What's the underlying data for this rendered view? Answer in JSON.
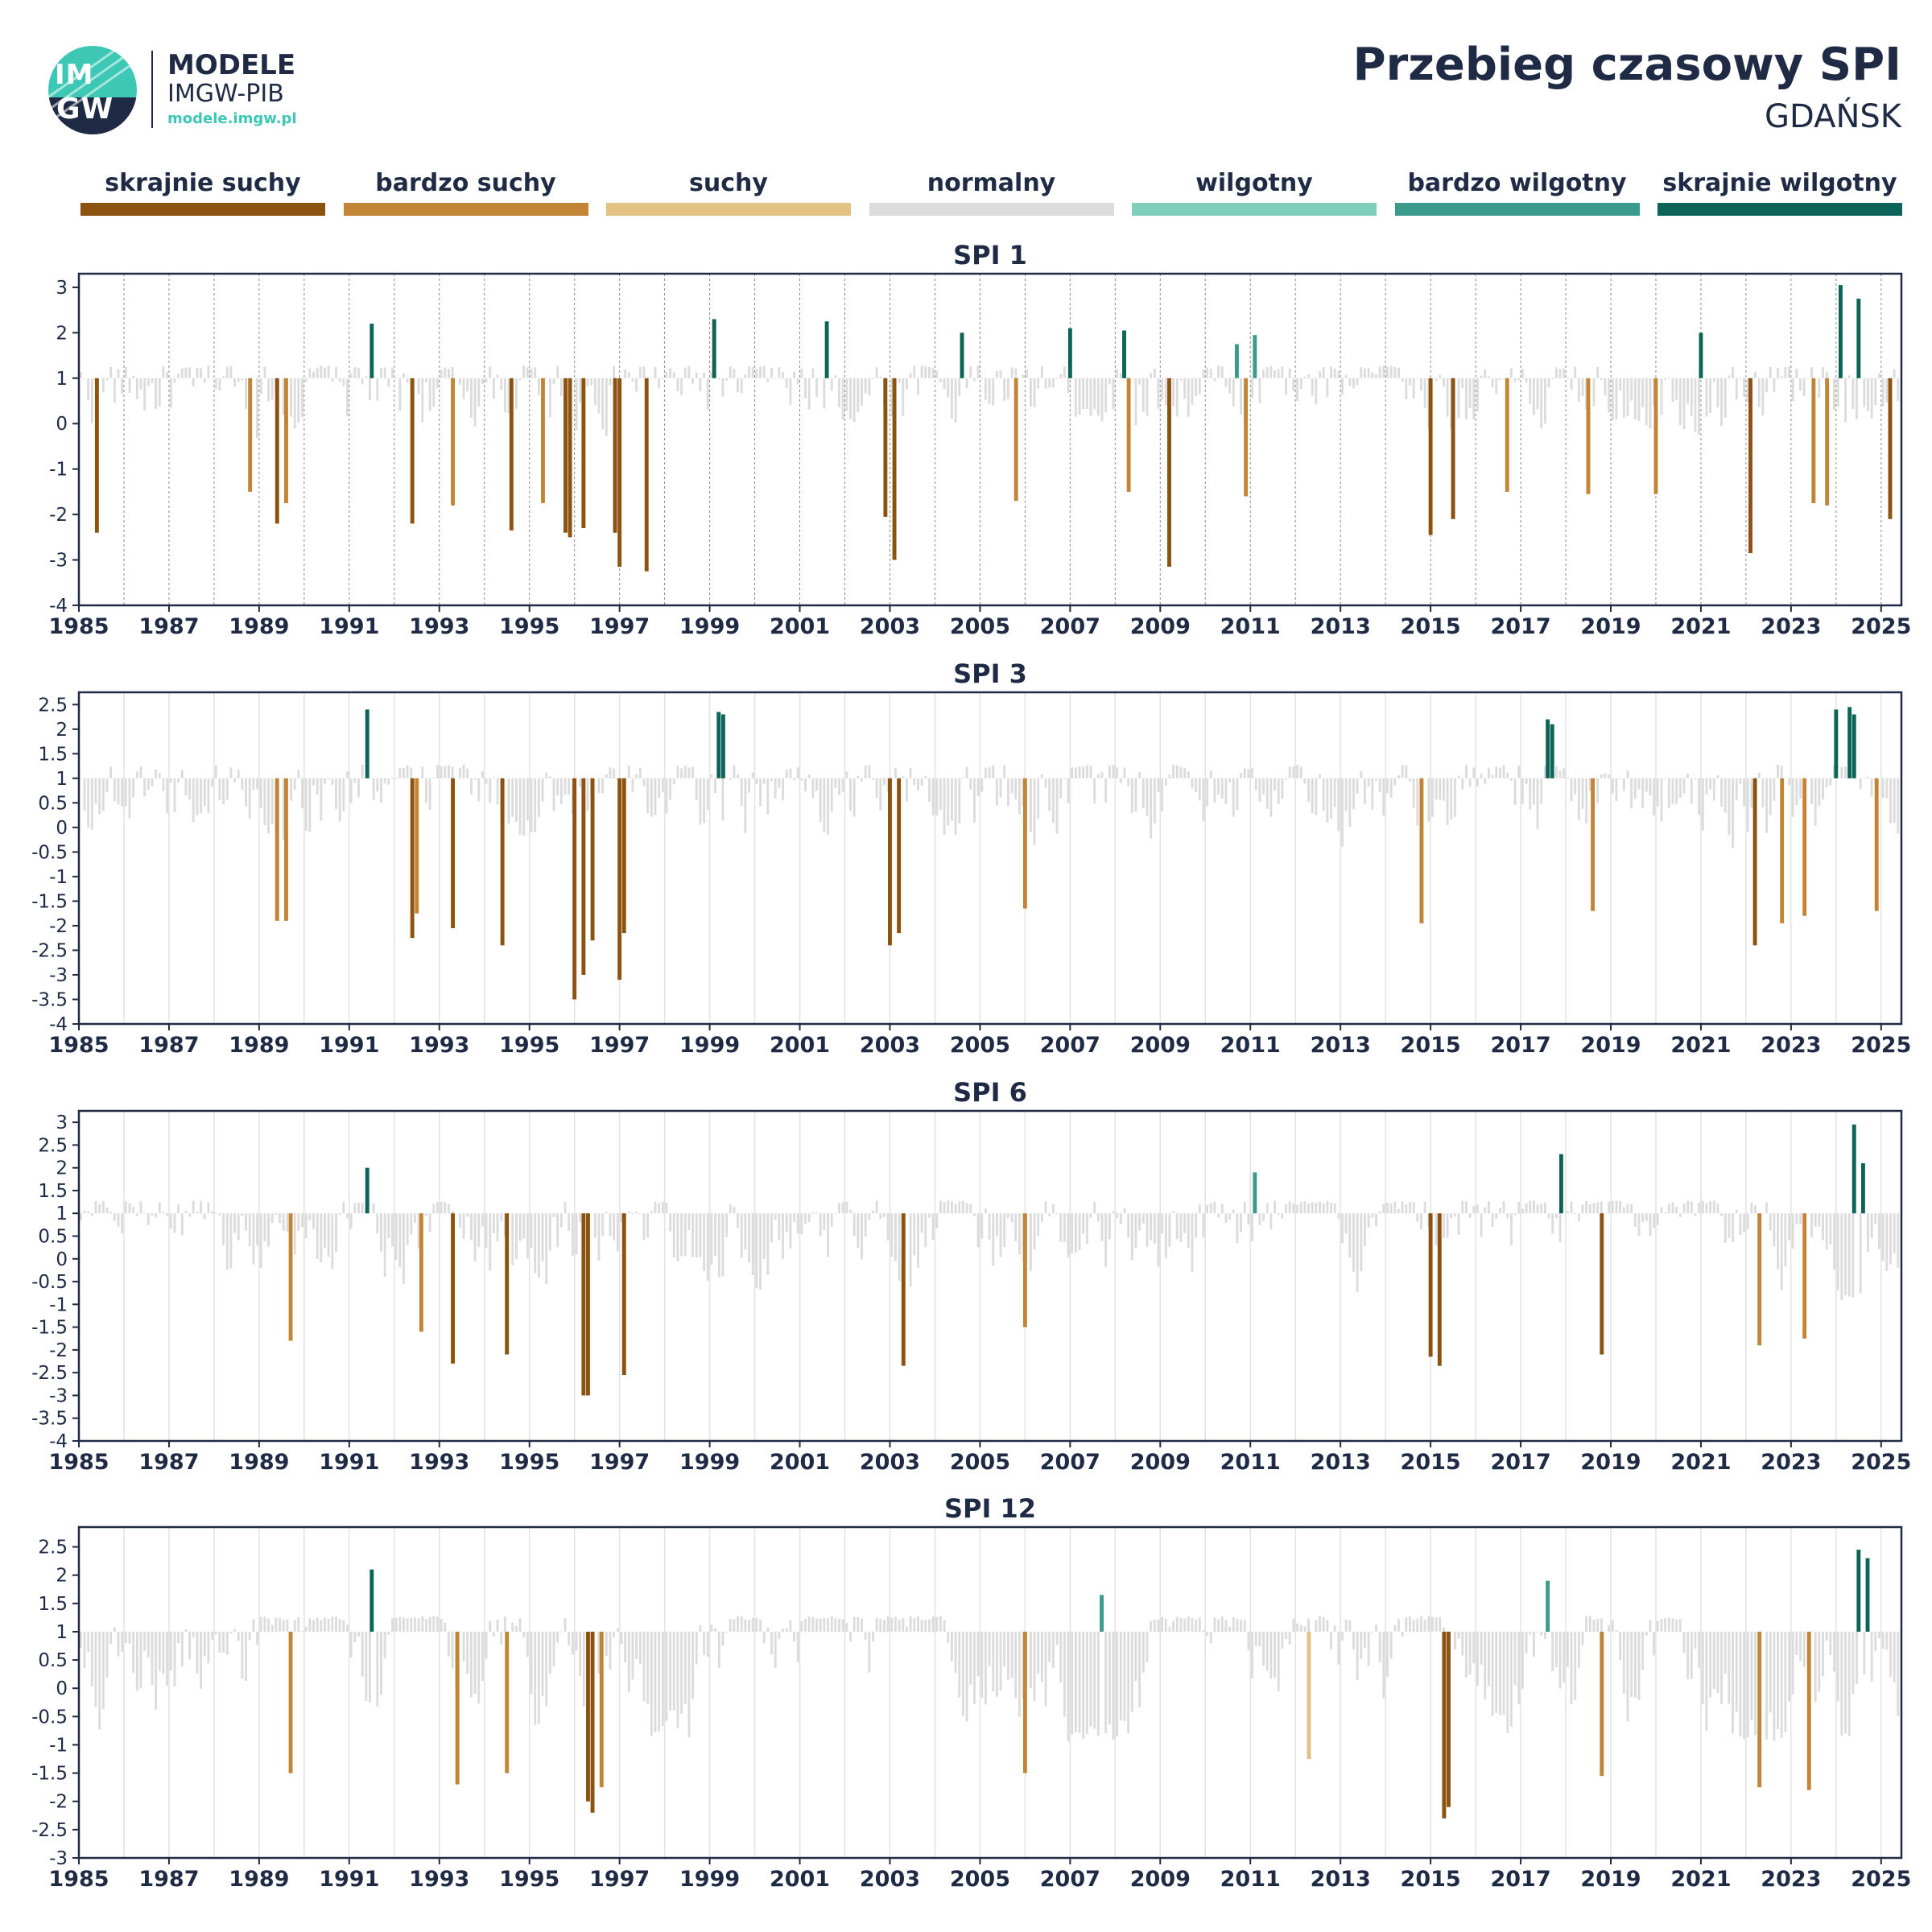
{
  "header": {
    "logo_text_line1": "MODELE",
    "logo_text_line2": "IMGW-PIB",
    "logo_url": "modele.imgw.pl",
    "logo_mark_top": "IM",
    "logo_mark_bottom": "GW",
    "title": "Przebieg czasowy SPI",
    "subtitle": "GDAŃSK"
  },
  "legend": [
    {
      "label": "skrajnie suchy",
      "color": "#8b5210"
    },
    {
      "label": "bardzo suchy",
      "color": "#c28535"
    },
    {
      "label": "suchy",
      "color": "#e2c384"
    },
    {
      "label": "normalny",
      "color": "#dcdcdc"
    },
    {
      "label": "wilgotny",
      "color": "#7fcdbb"
    },
    {
      "label": "bardzo wilgotny",
      "color": "#3a9a8c"
    },
    {
      "label": "skrajnie wilgotny",
      "color": "#0b6457"
    }
  ],
  "chart_data": [
    {
      "type": "bar",
      "title": "SPI 1",
      "xlim": [
        1985.0,
        2025.45
      ],
      "ylim": [
        -4,
        3.3
      ],
      "yticks": [
        "3",
        "2",
        "1",
        "0",
        "-1",
        "-2",
        "-3",
        "-4"
      ],
      "ytick_values": [
        3,
        2,
        1,
        0,
        -1,
        -2,
        -3,
        -4
      ],
      "xticks": [
        "1985",
        "1987",
        "1989",
        "1991",
        "1993",
        "1995",
        "1997",
        "1999",
        "2001",
        "2003",
        "2005",
        "2007",
        "2009",
        "2011",
        "2013",
        "2015",
        "2017",
        "2019",
        "2021",
        "2023",
        "2025"
      ],
      "baseline": 1,
      "grid": "dashed vertical lines at year starts",
      "extremes": [
        {
          "x": 1985.4,
          "y": -2.4
        },
        {
          "x": 1988.8,
          "y": -1.5
        },
        {
          "x": 1989.4,
          "y": -2.2
        },
        {
          "x": 1989.6,
          "y": -1.75
        },
        {
          "x": 1991.5,
          "y": 2.2
        },
        {
          "x": 1992.4,
          "y": -2.2
        },
        {
          "x": 1993.3,
          "y": -1.8
        },
        {
          "x": 1994.6,
          "y": -2.35
        },
        {
          "x": 1995.3,
          "y": -1.75
        },
        {
          "x": 1995.8,
          "y": -2.4
        },
        {
          "x": 1995.9,
          "y": -2.5
        },
        {
          "x": 1996.2,
          "y": -2.3
        },
        {
          "x": 1996.9,
          "y": -2.4
        },
        {
          "x": 1997.0,
          "y": -3.15
        },
        {
          "x": 1997.6,
          "y": -3.25
        },
        {
          "x": 1999.1,
          "y": 2.3
        },
        {
          "x": 2001.6,
          "y": 2.25
        },
        {
          "x": 2002.9,
          "y": -2.05
        },
        {
          "x": 2003.1,
          "y": -3.0
        },
        {
          "x": 2004.6,
          "y": 2.0
        },
        {
          "x": 2005.8,
          "y": -1.7
        },
        {
          "x": 2007.0,
          "y": 2.1
        },
        {
          "x": 2008.2,
          "y": 2.05
        },
        {
          "x": 2008.3,
          "y": -1.5
        },
        {
          "x": 2009.2,
          "y": -3.15
        },
        {
          "x": 2010.7,
          "y": 1.75
        },
        {
          "x": 2010.9,
          "y": -1.6
        },
        {
          "x": 2011.1,
          "y": 1.95
        },
        {
          "x": 2015.0,
          "y": -2.45
        },
        {
          "x": 2015.5,
          "y": -2.1
        },
        {
          "x": 2016.7,
          "y": -1.5
        },
        {
          "x": 2018.5,
          "y": -1.55
        },
        {
          "x": 2020.0,
          "y": -1.55
        },
        {
          "x": 2021.0,
          "y": 2.0
        },
        {
          "x": 2022.1,
          "y": -2.85
        },
        {
          "x": 2023.5,
          "y": -1.75
        },
        {
          "x": 2023.8,
          "y": -1.8
        },
        {
          "x": 2024.1,
          "y": 3.05
        },
        {
          "x": 2024.5,
          "y": 2.75
        },
        {
          "x": 2025.2,
          "y": -2.1
        }
      ]
    },
    {
      "type": "bar",
      "title": "SPI 3",
      "xlim": [
        1985.0,
        2025.45
      ],
      "ylim": [
        -4,
        2.75
      ],
      "yticks": [
        "2.5",
        "2",
        "1.5",
        "1",
        "0.5",
        "0",
        "-0.5",
        "-1",
        "-1.5",
        "-2",
        "-2.5",
        "-3",
        "-3.5",
        "-4"
      ],
      "ytick_values": [
        2.5,
        2,
        1.5,
        1,
        0.5,
        0,
        -0.5,
        -1,
        -1.5,
        -2,
        -2.5,
        -3,
        -3.5,
        -4
      ],
      "xticks": [
        "1985",
        "1987",
        "1989",
        "1991",
        "1993",
        "1995",
        "1997",
        "1999",
        "2001",
        "2003",
        "2005",
        "2007",
        "2009",
        "2011",
        "2013",
        "2015",
        "2017",
        "2019",
        "2021",
        "2023",
        "2025"
      ],
      "baseline": 1,
      "grid": "solid vertical lines at year starts",
      "extremes": [
        {
          "x": 1989.4,
          "y": -1.9
        },
        {
          "x": 1989.6,
          "y": -1.9
        },
        {
          "x": 1991.4,
          "y": 2.4
        },
        {
          "x": 1992.4,
          "y": -2.25
        },
        {
          "x": 1992.5,
          "y": -1.75
        },
        {
          "x": 1993.3,
          "y": -2.05
        },
        {
          "x": 1994.4,
          "y": -2.4
        },
        {
          "x": 1996.0,
          "y": -3.5
        },
        {
          "x": 1996.2,
          "y": -3.0
        },
        {
          "x": 1996.4,
          "y": -2.3
        },
        {
          "x": 1997.0,
          "y": -3.1
        },
        {
          "x": 1997.1,
          "y": -2.15
        },
        {
          "x": 1999.2,
          "y": 2.35
        },
        {
          "x": 1999.3,
          "y": 2.3
        },
        {
          "x": 2003.0,
          "y": -2.4
        },
        {
          "x": 2003.2,
          "y": -2.15
        },
        {
          "x": 2006.0,
          "y": -1.65
        },
        {
          "x": 2014.8,
          "y": -1.95
        },
        {
          "x": 2017.6,
          "y": 2.2
        },
        {
          "x": 2017.7,
          "y": 2.1
        },
        {
          "x": 2018.6,
          "y": -1.7
        },
        {
          "x": 2022.2,
          "y": -2.4
        },
        {
          "x": 2022.8,
          "y": -1.95
        },
        {
          "x": 2023.3,
          "y": -1.8
        },
        {
          "x": 2024.0,
          "y": 2.4
        },
        {
          "x": 2024.3,
          "y": 2.45
        },
        {
          "x": 2024.4,
          "y": 2.3
        },
        {
          "x": 2024.9,
          "y": -1.7
        }
      ]
    },
    {
      "type": "bar",
      "title": "SPI 6",
      "xlim": [
        1985.0,
        2025.45
      ],
      "ylim": [
        -4,
        3.25
      ],
      "yticks": [
        "3",
        "2.5",
        "2",
        "1.5",
        "1",
        "0.5",
        "0",
        "-0.5",
        "-1",
        "-1.5",
        "-2",
        "-2.5",
        "-3",
        "-3.5",
        "-4"
      ],
      "ytick_values": [
        3,
        2.5,
        2,
        1.5,
        1,
        0.5,
        0,
        -0.5,
        -1,
        -1.5,
        -2,
        -2.5,
        -3,
        -3.5,
        -4
      ],
      "xticks": [
        "1985",
        "1987",
        "1989",
        "1991",
        "1993",
        "1995",
        "1997",
        "1999",
        "2001",
        "2003",
        "2005",
        "2007",
        "2009",
        "2011",
        "2013",
        "2015",
        "2017",
        "2019",
        "2021",
        "2023",
        "2025"
      ],
      "baseline": 1,
      "grid": "solid vertical lines at year starts",
      "extremes": [
        {
          "x": 1989.7,
          "y": -1.8
        },
        {
          "x": 1991.4,
          "y": 2.0
        },
        {
          "x": 1992.6,
          "y": -1.6
        },
        {
          "x": 1993.3,
          "y": -2.3
        },
        {
          "x": 1994.5,
          "y": -2.1
        },
        {
          "x": 1996.2,
          "y": -3.0
        },
        {
          "x": 1996.3,
          "y": -3.0
        },
        {
          "x": 1997.1,
          "y": -2.55
        },
        {
          "x": 2003.3,
          "y": -2.35
        },
        {
          "x": 2006.0,
          "y": -1.5
        },
        {
          "x": 2011.1,
          "y": 1.9
        },
        {
          "x": 2015.0,
          "y": -2.15
        },
        {
          "x": 2015.2,
          "y": -2.35
        },
        {
          "x": 2017.9,
          "y": 2.3
        },
        {
          "x": 2018.8,
          "y": -2.1
        },
        {
          "x": 2022.3,
          "y": -1.9
        },
        {
          "x": 2023.3,
          "y": -1.75
        },
        {
          "x": 2024.4,
          "y": 2.95
        },
        {
          "x": 2024.6,
          "y": 2.1
        }
      ]
    },
    {
      "type": "bar",
      "title": "SPI 12",
      "xlim": [
        1985.0,
        2025.45
      ],
      "ylim": [
        -3,
        2.85
      ],
      "yticks": [
        "2.5",
        "2",
        "1.5",
        "1",
        "0.5",
        "0",
        "-0.5",
        "-1",
        "-1.5",
        "-2",
        "-2.5",
        "-3"
      ],
      "ytick_values": [
        2.5,
        2,
        1.5,
        1,
        0.5,
        0,
        -0.5,
        -1,
        -1.5,
        -2,
        -2.5,
        -3
      ],
      "xticks": [
        "1985",
        "1987",
        "1989",
        "1991",
        "1993",
        "1995",
        "1997",
        "1999",
        "2001",
        "2003",
        "2005",
        "2007",
        "2009",
        "2011",
        "2013",
        "2015",
        "2017",
        "2019",
        "2021",
        "2023",
        "2025"
      ],
      "baseline": 1,
      "grid": "solid vertical lines at year starts",
      "extremes": [
        {
          "x": 1989.7,
          "y": -1.5
        },
        {
          "x": 1991.5,
          "y": 2.1
        },
        {
          "x": 1993.4,
          "y": -1.7
        },
        {
          "x": 1994.5,
          "y": -1.5
        },
        {
          "x": 1996.3,
          "y": -2.0
        },
        {
          "x": 1996.4,
          "y": -2.2
        },
        {
          "x": 1996.6,
          "y": -1.75
        },
        {
          "x": 2006.0,
          "y": -1.5
        },
        {
          "x": 2007.7,
          "y": 1.65
        },
        {
          "x": 2012.3,
          "y": -1.25
        },
        {
          "x": 2015.3,
          "y": -2.3
        },
        {
          "x": 2015.4,
          "y": -2.1
        },
        {
          "x": 2017.6,
          "y": 1.9
        },
        {
          "x": 2018.8,
          "y": -1.55
        },
        {
          "x": 2022.3,
          "y": -1.75
        },
        {
          "x": 2023.4,
          "y": -1.8
        },
        {
          "x": 2024.5,
          "y": 2.45
        },
        {
          "x": 2024.7,
          "y": 2.3
        }
      ]
    }
  ]
}
